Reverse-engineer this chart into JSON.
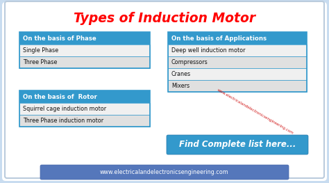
{
  "title": "Types of Induction Motor",
  "title_color": "#FF0000",
  "title_fontsize": 13.5,
  "bg_color": "#C8DCF0",
  "header_bg": "#3399CC",
  "header_text_color": "#FFFFFF",
  "border_color": "#3399CC",
  "box_text_color": "#111111",
  "left_table": {
    "header": "On the basis of Phase",
    "rows": [
      "Single Phase",
      "Three Phase"
    ]
  },
  "left_table2": {
    "header": "On the basis of  Rotor",
    "rows": [
      "Squirrel cage induction motor",
      "Three Phase induction motor"
    ]
  },
  "right_table": {
    "header": "On the basis of Applications",
    "rows": [
      "Deep well induction motor",
      "Compressors",
      "Cranes",
      "Mixers"
    ]
  },
  "find_text": "Find Complete list here...",
  "find_bg": "#3399CC",
  "find_text_color": "#FFFFFF",
  "watermark": "www.electricalandelectronicsengineering.com",
  "watermark_color": "#CC0000",
  "footer_text": "www.electricalandelectronicsengineering.com",
  "footer_bg": "#5577BB",
  "footer_text_color": "#FFFFFF",
  "row_colors": [
    "#F0F0F0",
    "#E0E0E0"
  ]
}
